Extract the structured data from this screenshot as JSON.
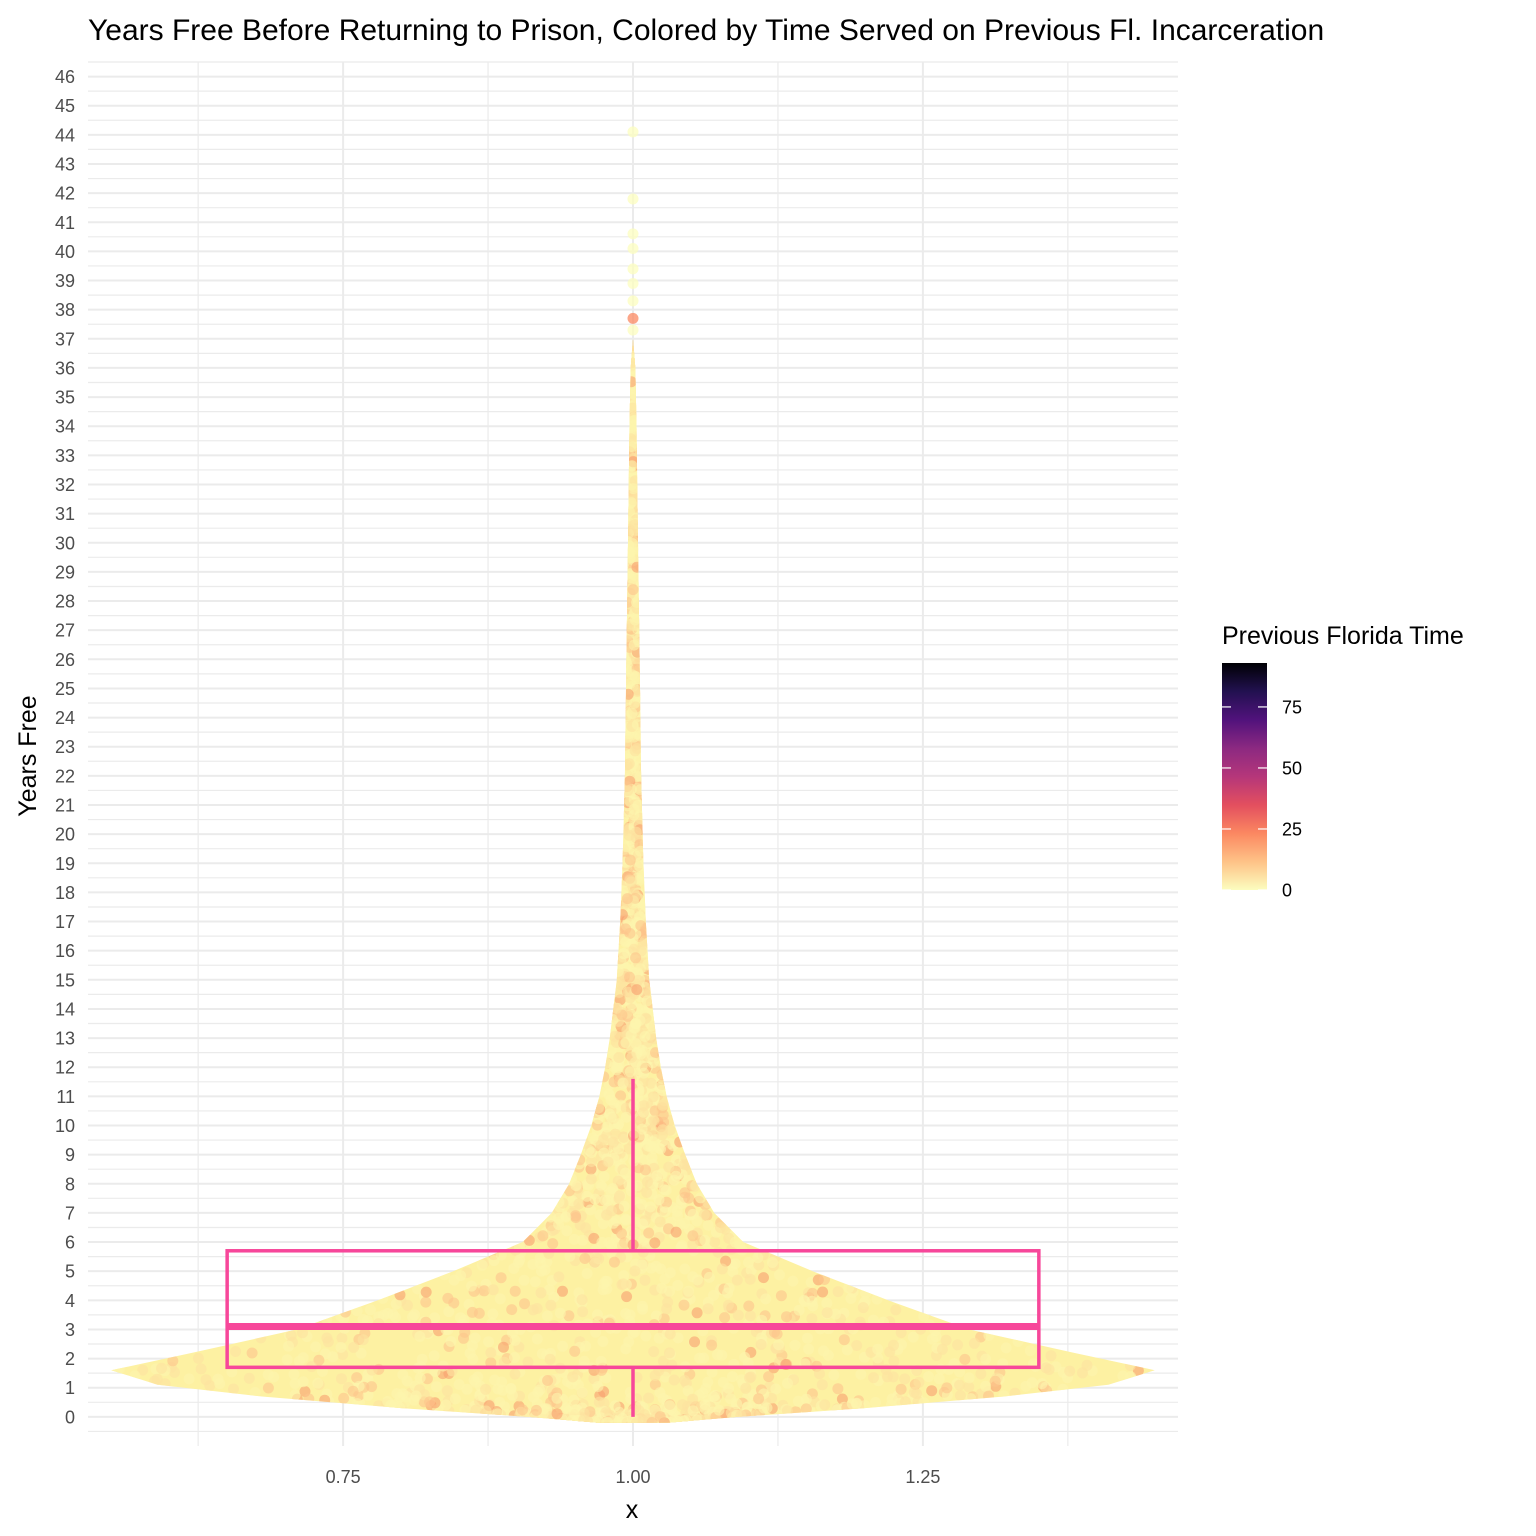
{
  "chart_data": {
    "type": "violin",
    "overlays": [
      "jittered-points",
      "boxplot"
    ],
    "title": "Years Free Before Returning to Prison, Colored by Time Served on Previous Fl. Incarceration",
    "xlabel": "x",
    "ylabel": "Years Free",
    "x_ticks": [
      0.75,
      1.0,
      1.25
    ],
    "x_tick_labels": [
      "0.75",
      "1.00",
      "1.25"
    ],
    "xlim": [
      0.53,
      1.47
    ],
    "y_ticks": [
      0,
      1,
      2,
      3,
      4,
      5,
      6,
      7,
      8,
      9,
      10,
      11,
      12,
      13,
      14,
      15,
      16,
      17,
      18,
      19,
      20,
      21,
      22,
      23,
      24,
      25,
      26,
      27,
      28,
      29,
      30,
      31,
      32,
      33,
      34,
      35,
      36,
      37,
      38,
      39,
      40,
      41,
      42,
      43,
      44,
      45,
      46
    ],
    "ylim": [
      -1,
      46.5
    ],
    "grid": true,
    "violin": {
      "center": 1.0,
      "profile": [
        {
          "y": -0.2,
          "half_width": 0.03
        },
        {
          "y": 0.0,
          "half_width": 0.09
        },
        {
          "y": 0.3,
          "half_width": 0.2
        },
        {
          "y": 0.7,
          "half_width": 0.32
        },
        {
          "y": 1.1,
          "half_width": 0.41
        },
        {
          "y": 1.6,
          "half_width": 0.45
        },
        {
          "y": 2.2,
          "half_width": 0.38
        },
        {
          "y": 3.0,
          "half_width": 0.29
        },
        {
          "y": 4.0,
          "half_width": 0.22
        },
        {
          "y": 5.0,
          "half_width": 0.155
        },
        {
          "y": 6.0,
          "half_width": 0.095
        },
        {
          "y": 7.0,
          "half_width": 0.07
        },
        {
          "y": 8.0,
          "half_width": 0.055
        },
        {
          "y": 9.0,
          "half_width": 0.045
        },
        {
          "y": 10.0,
          "half_width": 0.036
        },
        {
          "y": 11.0,
          "half_width": 0.029
        },
        {
          "y": 12.0,
          "half_width": 0.024
        },
        {
          "y": 13.0,
          "half_width": 0.02
        },
        {
          "y": 14.0,
          "half_width": 0.017
        },
        {
          "y": 15.0,
          "half_width": 0.014
        },
        {
          "y": 17.0,
          "half_width": 0.011
        },
        {
          "y": 19.0,
          "half_width": 0.009
        },
        {
          "y": 22.0,
          "half_width": 0.007
        },
        {
          "y": 25.0,
          "half_width": 0.006
        },
        {
          "y": 28.0,
          "half_width": 0.005
        },
        {
          "y": 31.0,
          "half_width": 0.004
        },
        {
          "y": 34.0,
          "half_width": 0.003
        },
        {
          "y": 36.0,
          "half_width": 0.002
        },
        {
          "y": 37.0,
          "half_width": 0.0
        }
      ]
    },
    "outlier_points": [
      {
        "x": 1.0,
        "y": 44.1,
        "previous_time": 5
      },
      {
        "x": 1.0,
        "y": 41.8,
        "previous_time": 2
      },
      {
        "x": 1.0,
        "y": 40.6,
        "previous_time": 1
      },
      {
        "x": 1.0,
        "y": 40.1,
        "previous_time": 1
      },
      {
        "x": 1.0,
        "y": 39.4,
        "previous_time": 1
      },
      {
        "x": 1.0,
        "y": 38.9,
        "previous_time": 2
      },
      {
        "x": 1.0,
        "y": 38.3,
        "previous_time": 1
      },
      {
        "x": 1.0,
        "y": 37.7,
        "previous_time": 22
      },
      {
        "x": 1.0,
        "y": 37.3,
        "previous_time": 1
      }
    ],
    "boxplot": {
      "x_range": [
        0.65,
        1.35
      ],
      "q1": 1.7,
      "median": 3.1,
      "q3": 5.7,
      "whisker_low": 0.0,
      "whisker_high": 11.6,
      "color": "#f7479a"
    },
    "legend": {
      "title": "Previous Florida Time",
      "position": "right",
      "type": "colorbar",
      "palette": "magma-reversed",
      "range": [
        0,
        93
      ],
      "ticks": [
        0,
        25,
        50,
        75
      ],
      "tick_labels": [
        "0",
        "25",
        "50",
        "75"
      ],
      "colors": [
        "#fcfdbf",
        "#fec287",
        "#fb8861",
        "#e34f5f",
        "#b5367a",
        "#8c2981",
        "#51127c",
        "#221150",
        "#000004"
      ]
    }
  }
}
